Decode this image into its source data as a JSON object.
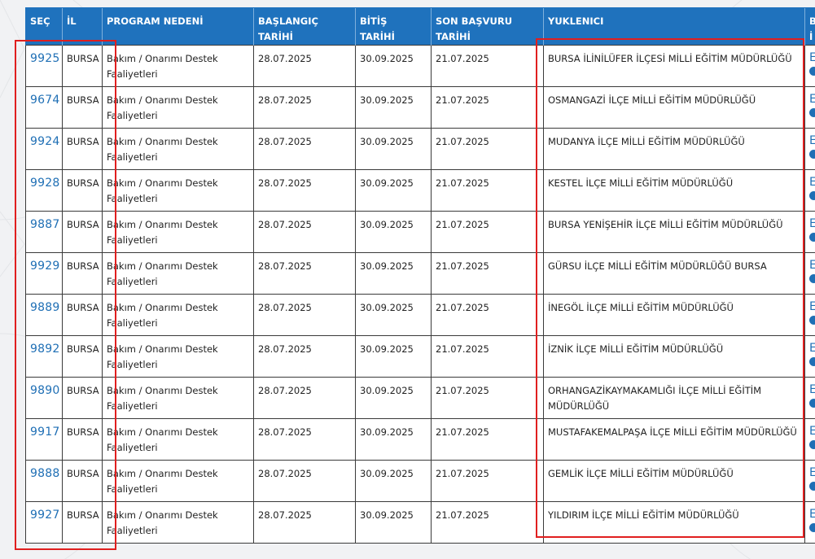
{
  "headers": {
    "sec": "SEÇ",
    "il": "İL",
    "program": "PROGRAM NEDENİ",
    "start_line1": "BAŞLANGIÇ",
    "start_line2": "TARİHİ",
    "end_line1": "BİTİŞ",
    "end_line2": "TARİHİ",
    "deadline_line1": "SON BAŞVURU",
    "deadline_line2": "TARİHİ",
    "contractor": "YUKLENICI",
    "last_line1": "B",
    "last_line2": "İ"
  },
  "rows": [
    {
      "id": "9925",
      "il": "BURSA",
      "program": "Bakım / Onarımı Destek Faaliyetleri",
      "start": "28.07.2025",
      "end": "30.09.2025",
      "deadline": "21.07.2025",
      "contractor": "BURSA İLİNİLÜFER İLÇESİ MİLLİ EĞİTİM MÜDÜRLÜĞÜ",
      "last_link": "E"
    },
    {
      "id": "9674",
      "il": "BURSA",
      "program": "Bakım / Onarımı Destek Faaliyetleri",
      "start": "28.07.2025",
      "end": "30.09.2025",
      "deadline": "21.07.2025",
      "contractor": "OSMANGAZİ İLÇE MİLLİ EĞİTİM MÜDÜRLÜĞÜ",
      "last_link": "E"
    },
    {
      "id": "9924",
      "il": "BURSA",
      "program": "Bakım / Onarımı Destek Faaliyetleri",
      "start": "28.07.2025",
      "end": "30.09.2025",
      "deadline": "21.07.2025",
      "contractor": "MUDANYA İLÇE MİLLİ EĞİTİM MÜDÜRLÜĞÜ",
      "last_link": "E"
    },
    {
      "id": "9928",
      "il": "BURSA",
      "program": "Bakım / Onarımı Destek Faaliyetleri",
      "start": "28.07.2025",
      "end": "30.09.2025",
      "deadline": "21.07.2025",
      "contractor": "KESTEL İLÇE MİLLİ EĞİTİM MÜDÜRLÜĞÜ",
      "last_link": "E"
    },
    {
      "id": "9887",
      "il": "BURSA",
      "program": "Bakım / Onarımı Destek Faaliyetleri",
      "start": "28.07.2025",
      "end": "30.09.2025",
      "deadline": "21.07.2025",
      "contractor": "BURSA YENİŞEHİR İLÇE MİLLİ EĞİTİM MÜDÜRLÜĞÜ",
      "last_link": "E"
    },
    {
      "id": "9929",
      "il": "BURSA",
      "program": "Bakım / Onarımı Destek Faaliyetleri",
      "start": "28.07.2025",
      "end": "30.09.2025",
      "deadline": "21.07.2025",
      "contractor": "GÜRSU İLÇE MİLLİ EĞİTİM MÜDÜRLÜĞÜ BURSA",
      "last_link": "E"
    },
    {
      "id": "9889",
      "il": "BURSA",
      "program": "Bakım / Onarımı Destek Faaliyetleri",
      "start": "28.07.2025",
      "end": "30.09.2025",
      "deadline": "21.07.2025",
      "contractor": "İNEGÖL İLÇE MİLLİ EĞİTİM MÜDÜRLÜĞÜ",
      "last_link": "E"
    },
    {
      "id": "9892",
      "il": "BURSA",
      "program": "Bakım / Onarımı Destek Faaliyetleri",
      "start": "28.07.2025",
      "end": "30.09.2025",
      "deadline": "21.07.2025",
      "contractor": "İZNİK İLÇE MİLLİ EĞİTİM MÜDÜRLÜĞÜ",
      "last_link": "E"
    },
    {
      "id": "9890",
      "il": "BURSA",
      "program": "Bakım / Onarımı Destek Faaliyetleri",
      "start": "28.07.2025",
      "end": "30.09.2025",
      "deadline": "21.07.2025",
      "contractor": "ORHANGAZİKAYMAKAMLIĞI İLÇE MİLLİ EĞİTİM MÜDÜRLÜĞÜ",
      "last_link": "E"
    },
    {
      "id": "9917",
      "il": "BURSA",
      "program": "Bakım / Onarımı Destek Faaliyetleri",
      "start": "28.07.2025",
      "end": "30.09.2025",
      "deadline": "21.07.2025",
      "contractor": "MUSTAFAKEMALPAŞA İLÇE MİLLİ EĞİTİM MÜDÜRLÜĞÜ",
      "last_link": "E"
    },
    {
      "id": "9888",
      "il": "BURSA",
      "program": "Bakım / Onarımı Destek Faaliyetleri",
      "start": "28.07.2025",
      "end": "30.09.2025",
      "deadline": "21.07.2025",
      "contractor": "GEMLİK İLÇE MİLLİ EĞİTİM MÜDÜRLÜĞÜ",
      "last_link": "E"
    },
    {
      "id": "9927",
      "il": "BURSA",
      "program": "Bakım / Onarımı Destek Faaliyetleri",
      "start": "28.07.2025",
      "end": "30.09.2025",
      "deadline": "21.07.2025",
      "contractor": "YILDIRIM İLÇE MİLLİ EĞİTİM MÜDÜRLÜĞÜ",
      "last_link": "E"
    }
  ],
  "colors": {
    "header_bg": "#1f72bd",
    "link": "#1f6fb5",
    "highlight": "#e01f1f",
    "page_bg": "#f1f2f4"
  },
  "icons": {
    "row_info": "info-circle-icon"
  }
}
